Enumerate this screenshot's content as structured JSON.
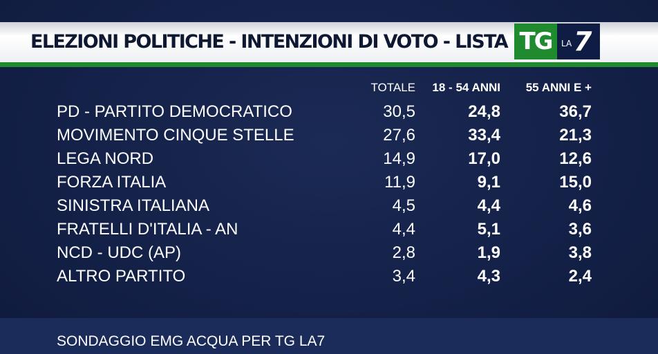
{
  "header": {
    "title": "ELEZIONI POLITICHE - INTENZIONI DI VOTO - LISTA PER ETÀ",
    "logo_tg": "TG",
    "logo_la": "LA",
    "logo_seven": "7"
  },
  "colors": {
    "background": "#142148",
    "accent_green": "#1f8a2e",
    "title_bar": "#ffffff",
    "title_text": "#0f1833"
  },
  "chart_data": {
    "type": "table",
    "columns": [
      "TOTALE",
      "18 - 54 ANNI",
      "55 ANNI E +"
    ],
    "rows": [
      {
        "party": "PD - PARTITO DEMOCRATICO",
        "totale": "30,5",
        "young": "24,8",
        "old": "36,7"
      },
      {
        "party": "MOVIMENTO CINQUE STELLE",
        "totale": "27,6",
        "young": "33,4",
        "old": "21,3"
      },
      {
        "party": "LEGA NORD",
        "totale": "14,9",
        "young": "17,0",
        "old": "12,6"
      },
      {
        "party": "FORZA ITALIA",
        "totale": "11,9",
        "young": "9,1",
        "old": "15,0"
      },
      {
        "party": "SINISTRA ITALIANA",
        "totale": "4,5",
        "young": "4,4",
        "old": "4,6"
      },
      {
        "party": "FRATELLI D'ITALIA - AN",
        "totale": "4,4",
        "young": "5,1",
        "old": "3,6"
      },
      {
        "party": "NCD - UDC (AP)",
        "totale": "2,8",
        "young": "1,9",
        "old": "3,8"
      },
      {
        "party": "ALTRO PARTITO",
        "totale": "3,4",
        "young": "4,3",
        "old": "2,4"
      }
    ]
  },
  "footer": {
    "source": "SONDAGGIO EMG ACQUA PER TG LA7"
  }
}
